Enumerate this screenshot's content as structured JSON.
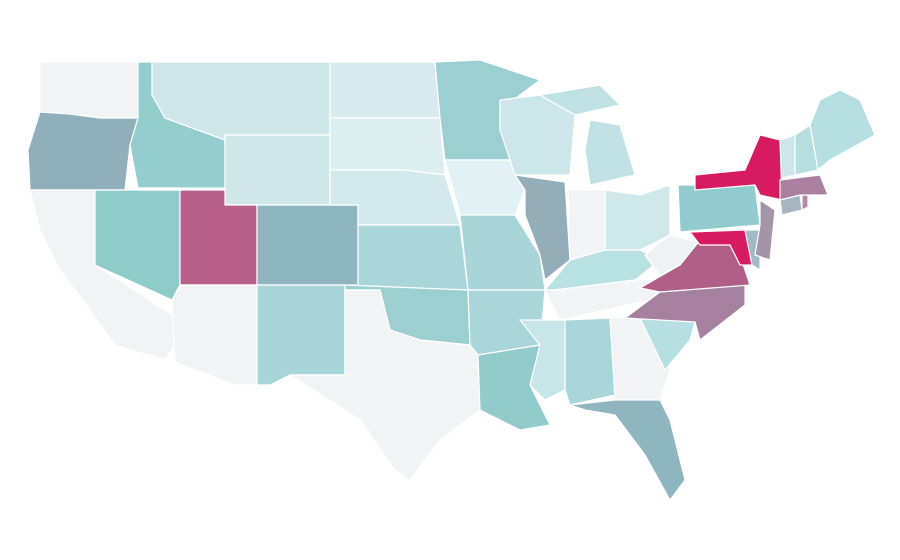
{
  "map": {
    "regions": [
      {
        "color": "#f2f3f5"
      },
      {
        "color": "#8fb0bb"
      },
      {
        "color": "#f2f3f5"
      },
      {
        "color": "#93cdcd"
      },
      {
        "color": "#8fcbcb"
      },
      {
        "color": "#cfe7e8"
      },
      {
        "color": "#d0e7ea"
      },
      {
        "color": "#b85f8a"
      },
      {
        "color": "#8fb5bf"
      },
      {
        "color": "#f2f3f5"
      },
      {
        "color": "#a8d6d8"
      },
      {
        "color": "#d7ebee"
      },
      {
        "color": "#ddeef1"
      },
      {
        "color": "#d4e9ec"
      },
      {
        "color": "#a9d6d8"
      },
      {
        "color": "#9cd0d0"
      },
      {
        "color": "#f2f3f5"
      },
      {
        "color": "#9ccfd1"
      },
      {
        "color": "#e2f1f4"
      },
      {
        "color": "#a8d5d7"
      },
      {
        "color": "#a9d6d8"
      },
      {
        "color": "#91cbcc"
      },
      {
        "color": "#cde6e9"
      },
      {
        "color": "#93aeb9"
      },
      {
        "color": "#c1e2e4"
      },
      {
        "color": "#c1e2e4"
      },
      {
        "color": "#f2f3f5"
      },
      {
        "color": "#cfe8ea"
      },
      {
        "color": "#b9e1e1"
      },
      {
        "color": "#f2f3f5"
      },
      {
        "color": "#c7e6e7"
      },
      {
        "color": "#a9d6d8"
      },
      {
        "color": "#f2f3f5"
      },
      {
        "color": "#8fb5bf"
      },
      {
        "color": "#b5dfe0"
      },
      {
        "color": "#a6809f"
      },
      {
        "color": "#b06086"
      },
      {
        "color": "#eef2f4"
      },
      {
        "color": "#91cbcd"
      },
      {
        "color": "#d81b60"
      },
      {
        "color": "#d81b60"
      },
      {
        "color": "#9fb9c6"
      },
      {
        "color": "#a394a8"
      },
      {
        "color": "#a8b4c0"
      },
      {
        "color": "#b889a6"
      },
      {
        "color": "#a9809e"
      },
      {
        "color": "#cbe6e8"
      },
      {
        "color": "#b5dede"
      },
      {
        "color": "#b5dfe0"
      }
    ]
  }
}
